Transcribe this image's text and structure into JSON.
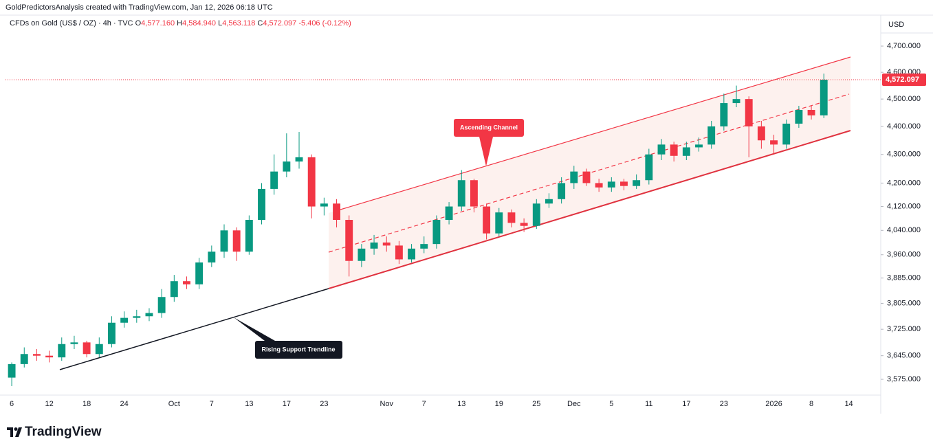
{
  "header": {
    "credit": "GoldPredictorsAnalysis created with TradingView.com, Jan 12, 2026 06:18 UTC",
    "symbol": "CFDs on Gold (US$ / OZ) · 4h · TVC",
    "ohlc": [
      {
        "key": "O",
        "text": "4,577.160"
      },
      {
        "key": "H",
        "text": "4,584.940"
      },
      {
        "key": "L",
        "text": "4,563.118"
      },
      {
        "key": "C",
        "text": "4,572.097"
      }
    ],
    "change": "-5.406 (-0.12%)"
  },
  "footer": {
    "brand": "TradingView"
  },
  "chart_data": {
    "type": "candlestick",
    "currency": "USD",
    "up_color": "#089981",
    "down_color": "#f23645",
    "log_scale": true,
    "grid": false,
    "ylim": [
      3535,
      4821
    ],
    "yticks": [
      {
        "value": 4700,
        "label": "4,700.000"
      },
      {
        "value": 4600,
        "label": "4,600.000"
      },
      {
        "value": 4500,
        "label": "4,500.000"
      },
      {
        "value": 4400,
        "label": "4,400.000"
      },
      {
        "value": 4300,
        "label": "4,300.000"
      },
      {
        "value": 4200,
        "label": "4,200.000"
      },
      {
        "value": 4120,
        "label": "4,120.000"
      },
      {
        "value": 4040,
        "label": "4,040.000"
      },
      {
        "value": 3960,
        "label": "3,960.000"
      },
      {
        "value": 3885,
        "label": "3,885.000"
      },
      {
        "value": 3805,
        "label": "3,805.000"
      },
      {
        "value": 3725,
        "label": "3,725.000"
      },
      {
        "value": 3645,
        "label": "3,645.000"
      },
      {
        "value": 3575,
        "label": "3,575.000"
      }
    ],
    "last_price": {
      "value": 4572.097,
      "label": "4,572.097"
    },
    "annotations": {
      "channel": "Ascending Channel",
      "trendline": "Rising Support Trendline"
    },
    "categories": [
      "6",
      null,
      null,
      "12",
      null,
      null,
      "18",
      null,
      null,
      "24",
      null,
      null,
      null,
      "Oct",
      null,
      null,
      "7",
      null,
      null,
      "13",
      null,
      null,
      "17",
      null,
      null,
      "23",
      null,
      null,
      null,
      null,
      "Nov",
      null,
      null,
      "7",
      null,
      null,
      "13",
      null,
      null,
      "19",
      null,
      null,
      "25",
      null,
      null,
      "Dec",
      null,
      null,
      "5",
      null,
      null,
      "11",
      null,
      null,
      "17",
      null,
      null,
      "23",
      null,
      null,
      null,
      "2026",
      null,
      null,
      "8",
      null,
      null,
      "14",
      null,
      null
    ],
    "open": [
      3580,
      3620,
      3650,
      3645,
      3640,
      3680,
      3685,
      3650,
      3680,
      3745,
      3760,
      3765,
      3775,
      3825,
      3875,
      3865,
      3935,
      3970,
      4040,
      3970,
      4075,
      4180,
      4240,
      4275,
      4290,
      4120,
      4130,
      4075,
      3940,
      3980,
      4000,
      3990,
      3945,
      3980,
      3995,
      4075,
      4120,
      4210,
      4120,
      4030,
      4100,
      4065,
      4055,
      4130,
      4145,
      4200,
      4240,
      4200,
      4185,
      4205,
      4190,
      4210,
      4300,
      4335,
      4295,
      4325,
      4335,
      4400,
      4485,
      4500,
      4400,
      4350,
      4335,
      4410,
      4460,
      4440,
      null,
      null,
      null,
      null
    ],
    "high": [
      3625,
      3670,
      3665,
      3660,
      3700,
      3705,
      3690,
      3700,
      3765,
      3780,
      3785,
      3790,
      3850,
      3895,
      3890,
      3950,
      3990,
      4060,
      4050,
      4090,
      4200,
      4300,
      4375,
      4380,
      4300,
      4150,
      4145,
      4090,
      3995,
      4025,
      4020,
      4005,
      3995,
      4020,
      4090,
      4135,
      4245,
      4215,
      4130,
      4115,
      4110,
      4080,
      4145,
      4165,
      4220,
      4260,
      4250,
      4215,
      4220,
      4215,
      4230,
      4320,
      4355,
      4345,
      4345,
      4360,
      4420,
      4520,
      4550,
      4510,
      4420,
      4370,
      4425,
      4475,
      4475,
      4595,
      null,
      null,
      null,
      null
    ],
    "low": [
      3555,
      3610,
      3630,
      3625,
      3630,
      3665,
      3640,
      3640,
      3670,
      3730,
      3745,
      3750,
      3760,
      3810,
      3850,
      3850,
      3920,
      3950,
      3940,
      3960,
      4060,
      4160,
      4220,
      4250,
      4080,
      4090,
      4050,
      3890,
      3920,
      3960,
      3970,
      3930,
      3935,
      3965,
      3980,
      4060,
      4105,
      4100,
      4010,
      4020,
      4050,
      4035,
      4045,
      4115,
      4130,
      4180,
      4190,
      4170,
      4170,
      4175,
      4180,
      4195,
      4280,
      4275,
      4280,
      4310,
      4320,
      4385,
      4470,
      4290,
      4320,
      4300,
      4320,
      4395,
      4425,
      4430,
      null,
      null,
      null,
      null
    ],
    "close": [
      3620,
      3650,
      3645,
      3640,
      3680,
      3685,
      3650,
      3680,
      3745,
      3760,
      3765,
      3775,
      3825,
      3875,
      3865,
      3935,
      3970,
      4040,
      3970,
      4075,
      4180,
      4240,
      4275,
      4290,
      4120,
      4130,
      4075,
      3940,
      3980,
      4000,
      3990,
      3945,
      3980,
      3995,
      4075,
      4120,
      4210,
      4120,
      4030,
      4100,
      4065,
      4055,
      4130,
      4145,
      4200,
      4240,
      4200,
      4185,
      4205,
      4190,
      4210,
      4300,
      4335,
      4295,
      4325,
      4335,
      4400,
      4485,
      4500,
      4400,
      4350,
      4335,
      4410,
      4460,
      4440,
      4572,
      null,
      null,
      null,
      null
    ]
  }
}
